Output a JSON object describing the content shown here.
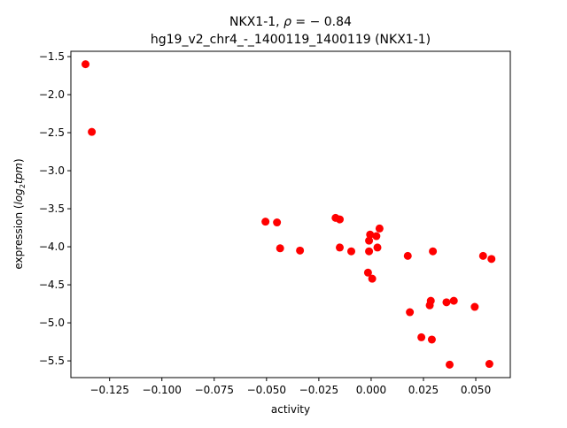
{
  "chart_data": {
    "type": "scatter",
    "title_line1_prefix": "NKX1-1, ",
    "title_line1_rho": "ρ",
    "title_line1_suffix": " = − 0.84",
    "title_line2": "hg19_v2_chr4_-_1400119_1400119 (NKX1-1)",
    "xlabel": "activity",
    "ylabel_prefix": "expression (",
    "ylabel_log": "log",
    "ylabel_sub": "2",
    "ylabel_tpm": "tpm",
    "ylabel_suffix": ")",
    "xlim": [
      -0.1435,
      0.0665
    ],
    "ylim": [
      -5.72,
      -1.43
    ],
    "xticks": [
      -0.125,
      -0.1,
      -0.075,
      -0.05,
      -0.025,
      0.0,
      0.025,
      0.05
    ],
    "xtick_labels": [
      "−0.125",
      "−0.100",
      "−0.075",
      "−0.050",
      "−0.025",
      "0.000",
      "0.025",
      "0.050"
    ],
    "yticks": [
      -1.5,
      -2.0,
      -2.5,
      -3.0,
      -3.5,
      -4.0,
      -4.5,
      -5.0,
      -5.5
    ],
    "ytick_labels": [
      "−1.5",
      "−2.0",
      "−2.5",
      "−3.0",
      "−3.5",
      "−4.0",
      "−4.5",
      "−5.0",
      "−5.5"
    ],
    "point_color": "#ff0000",
    "points": [
      [
        -0.1365,
        -1.6
      ],
      [
        -0.1335,
        -2.49
      ],
      [
        -0.0505,
        -3.67
      ],
      [
        -0.045,
        -3.68
      ],
      [
        -0.0435,
        -4.02
      ],
      [
        -0.034,
        -4.05
      ],
      [
        -0.017,
        -3.62
      ],
      [
        -0.015,
        -3.64
      ],
      [
        -0.015,
        -4.01
      ],
      [
        -0.0095,
        -4.06
      ],
      [
        -0.0015,
        -4.34
      ],
      [
        -0.001,
        -3.92
      ],
      [
        -0.001,
        -4.06
      ],
      [
        -0.0005,
        -3.84
      ],
      [
        0.0005,
        -4.42
      ],
      [
        0.0025,
        -3.86
      ],
      [
        0.003,
        -4.01
      ],
      [
        0.004,
        -3.76
      ],
      [
        0.0175,
        -4.12
      ],
      [
        0.0185,
        -4.86
      ],
      [
        0.024,
        -5.19
      ],
      [
        0.028,
        -4.77
      ],
      [
        0.0285,
        -4.71
      ],
      [
        0.029,
        -5.22
      ],
      [
        0.0295,
        -4.06
      ],
      [
        0.036,
        -4.73
      ],
      [
        0.0375,
        -5.55
      ],
      [
        0.0395,
        -4.71
      ],
      [
        0.0495,
        -4.79
      ],
      [
        0.0535,
        -4.12
      ],
      [
        0.0565,
        -5.54
      ],
      [
        0.0575,
        -4.16
      ]
    ]
  }
}
